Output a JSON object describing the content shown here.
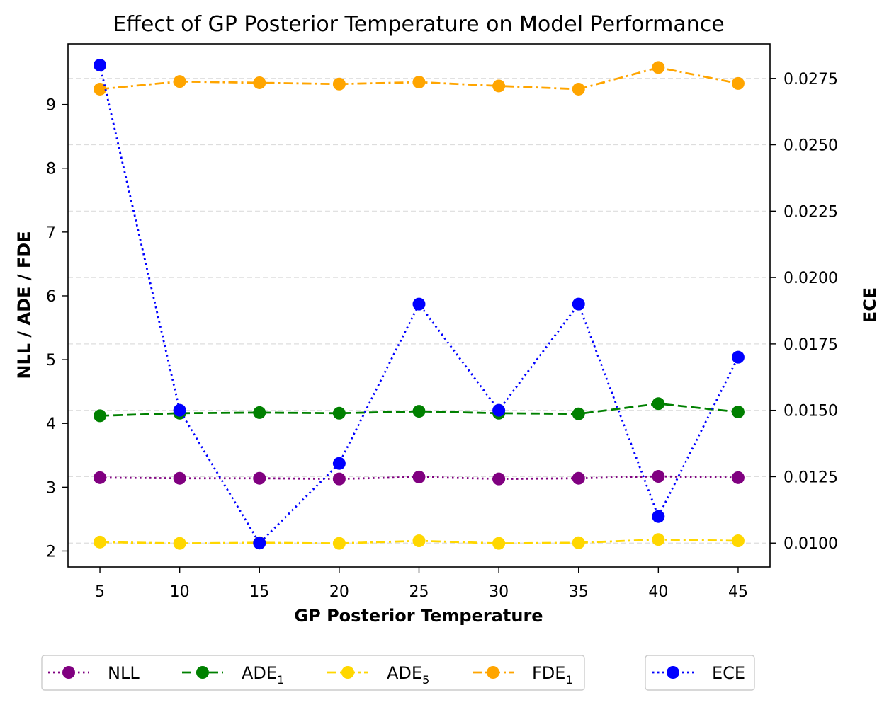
{
  "chart_data": {
    "type": "line",
    "title": "Effect of GP Posterior Temperature on Model Performance",
    "xlabel": "GP Posterior Temperature",
    "ylabel_left": "NLL / ADE / FDE",
    "ylabel_right": "ECE",
    "x": [
      5,
      10,
      15,
      20,
      25,
      30,
      35,
      40,
      45
    ],
    "xlim": [
      3,
      47
    ],
    "ylim_left": [
      1.75,
      9.95
    ],
    "ylim_right": [
      0.0091,
      0.0288
    ],
    "x_ticks": [
      "5",
      "10",
      "15",
      "20",
      "25",
      "30",
      "35",
      "40",
      "45"
    ],
    "y_ticks_left": [
      "2",
      "3",
      "4",
      "5",
      "6",
      "7",
      "8",
      "9"
    ],
    "y_ticks_right": [
      "0.0100",
      "0.0125",
      "0.0150",
      "0.0175",
      "0.0200",
      "0.0225",
      "0.0250",
      "0.0275"
    ],
    "grid": "horizontal dashed on right axis",
    "series": [
      {
        "name": "NLL",
        "legend_main": "NLL",
        "legend_sub": "",
        "axis": "left",
        "color": "#800080",
        "dash": "dotted",
        "values": [
          3.15,
          3.14,
          3.14,
          3.13,
          3.16,
          3.13,
          3.14,
          3.17,
          3.15
        ]
      },
      {
        "name": "ADE_1",
        "legend_main": "ADE",
        "legend_sub": "1",
        "axis": "left",
        "color": "#008000",
        "dash": "dashed",
        "values": [
          4.12,
          4.16,
          4.17,
          4.16,
          4.19,
          4.16,
          4.15,
          4.31,
          4.18
        ]
      },
      {
        "name": "ADE_5",
        "legend_main": "ADE",
        "legend_sub": "5",
        "axis": "left",
        "color": "#FFD700",
        "dash": "dashdot",
        "values": [
          2.14,
          2.12,
          2.13,
          2.12,
          2.16,
          2.12,
          2.13,
          2.18,
          2.16
        ]
      },
      {
        "name": "FDE_1",
        "legend_main": "FDE",
        "legend_sub": "1",
        "axis": "left",
        "color": "#FFA500",
        "dash": "dashdot",
        "values": [
          9.24,
          9.36,
          9.34,
          9.32,
          9.35,
          9.29,
          9.24,
          9.58,
          9.33
        ]
      },
      {
        "name": "ECE",
        "legend_main": "ECE",
        "legend_sub": "",
        "axis": "right",
        "color": "#0000FF",
        "dash": "dotted",
        "values": [
          0.028,
          0.015,
          0.01,
          0.013,
          0.019,
          0.015,
          0.019,
          0.011,
          0.017
        ]
      }
    ],
    "legend_position": "below plot"
  }
}
